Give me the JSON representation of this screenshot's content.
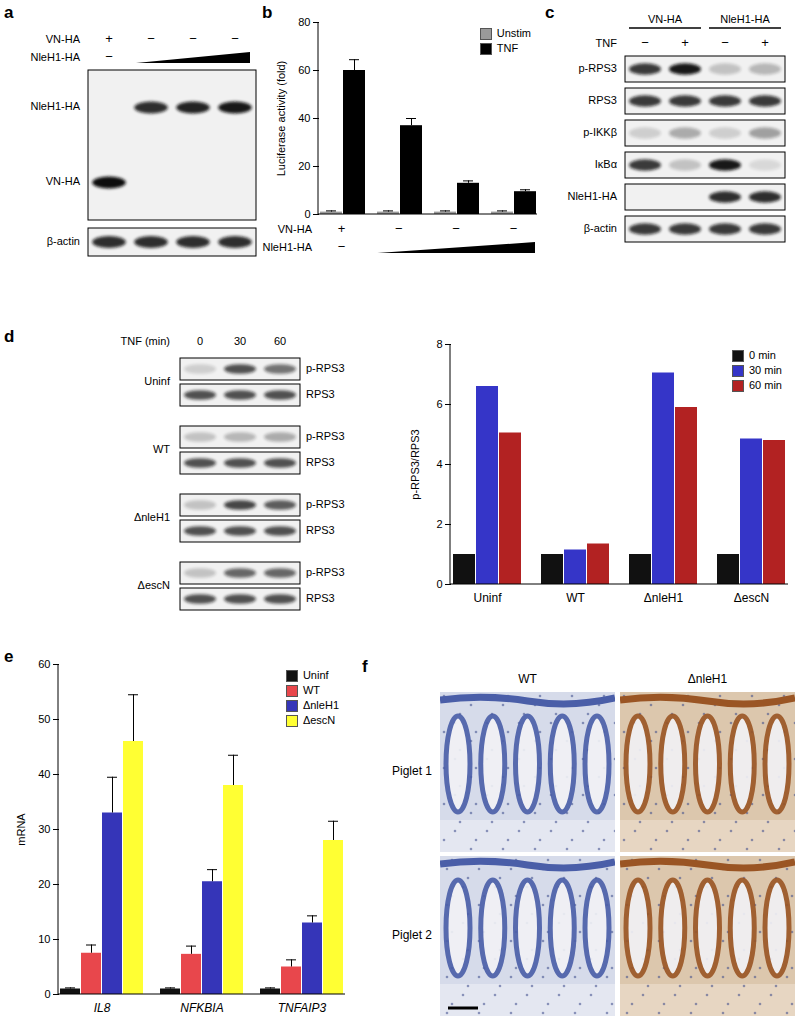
{
  "blots": [
    {
      "panel": "a",
      "header": [
        {
          "name": "VN-HA",
          "marks": [
            "+",
            "−",
            "−",
            "−"
          ]
        },
        {
          "name": "NleH1-HA",
          "marks": [
            "−",
            null,
            null,
            null
          ],
          "ramp": true
        }
      ],
      "boxes": [
        [
          {
            "label": "NleH1-HA",
            "bands": [
              0,
              0.85,
              0.9,
              0.95
            ]
          },
          {
            "label": "VN-HA",
            "bands": [
              1,
              0,
              0,
              0
            ]
          }
        ],
        [
          {
            "label": "β-actin",
            "bands": [
              0.85,
              0.85,
              0.85,
              0.85
            ]
          }
        ]
      ]
    },
    {
      "panel": "c",
      "group_header": [
        "VN-HA",
        "VN-HA",
        "NleH1-HA",
        "NleH1-HA"
      ],
      "header": [
        {
          "name": "TNF",
          "marks": [
            "−",
            "+",
            "−",
            "+"
          ]
        }
      ],
      "boxes": [
        [
          {
            "label": "p-RPS3",
            "bands": [
              0.8,
              0.95,
              0.2,
              0.25
            ]
          }
        ],
        [
          {
            "label": "RPS3",
            "bands": [
              0.8,
              0.8,
              0.8,
              0.8
            ]
          }
        ],
        [
          {
            "label": "p-IKKβ",
            "bands": [
              0.15,
              0.3,
              0.15,
              0.35
            ]
          }
        ],
        [
          {
            "label": "IκBα",
            "bands": [
              0.8,
              0.2,
              0.95,
              0.1
            ]
          }
        ],
        [
          {
            "label": "NleH1-HA",
            "bands": [
              0,
              0,
              0.85,
              0.85
            ]
          }
        ],
        [
          {
            "label": "β-actin",
            "bands": [
              0.8,
              0.8,
              0.8,
              0.8
            ]
          }
        ]
      ]
    },
    {
      "panel": "d",
      "header_label": "TNF (min)",
      "lanes": [
        0,
        30,
        60
      ],
      "groups": [
        {
          "name": "Uninf",
          "boxes": [
            [
              {
                "label": "p-RPS3",
                "bands": [
                  0.15,
                  0.7,
                  0.55
                ]
              }
            ],
            [
              {
                "label": "RPS3",
                "bands": [
                  0.7,
                  0.7,
                  0.7
                ]
              }
            ]
          ]
        },
        {
          "name": "WT",
          "boxes": [
            [
              {
                "label": "p-RPS3",
                "bands": [
                  0.2,
                  0.25,
                  0.3
                ]
              }
            ],
            [
              {
                "label": "RPS3",
                "bands": [
                  0.7,
                  0.7,
                  0.7
                ]
              }
            ]
          ]
        },
        {
          "name": "ΔnleH1",
          "boxes": [
            [
              {
                "label": "p-RPS3",
                "bands": [
                  0.2,
                  0.75,
                  0.65
                ]
              }
            ],
            [
              {
                "label": "RPS3",
                "bands": [
                  0.7,
                  0.7,
                  0.7
                ]
              }
            ]
          ]
        },
        {
          "name": "ΔescN",
          "boxes": [
            [
              {
                "label": "p-RPS3",
                "bands": [
                  0.2,
                  0.6,
                  0.6
                ]
              }
            ],
            [
              {
                "label": "RPS3",
                "bands": [
                  0.7,
                  0.7,
                  0.7
                ]
              }
            ]
          ]
        }
      ]
    }
  ],
  "images": {
    "panel": "f",
    "columns": [
      "WT",
      "ΔnleH1"
    ],
    "rows": [
      "Piglet 1",
      "Piglet 2"
    ]
  },
  "chart_data": [
    {
      "panel": "b",
      "type": "bar",
      "ylabel": "Luciferase activity (fold)",
      "categories": [
        null,
        null,
        null,
        null
      ],
      "condition_rows": [
        {
          "name": "VN-HA",
          "marks": [
            "+",
            "−",
            "−",
            "−"
          ]
        },
        {
          "name": "NleH1-HA",
          "marks": [
            "−",
            null,
            null,
            null
          ],
          "ramp": true
        }
      ],
      "series": [
        {
          "name": "Unstim",
          "color": "#9a9a9a",
          "values": [
            1,
            1,
            1,
            1
          ],
          "errors": [
            0.5,
            0.5,
            0.5,
            0.5
          ]
        },
        {
          "name": "TNF",
          "color": "#000000",
          "values": [
            60,
            37,
            13,
            9.5
          ],
          "errors": [
            4.5,
            3,
            1,
            0.8
          ]
        }
      ],
      "ylim": [
        0,
        80
      ],
      "yticks": [
        0,
        20,
        40,
        60,
        80
      ],
      "legend": "top-right"
    },
    {
      "type": "bar",
      "ylabel": "p-RPS3/RPS3",
      "categories": [
        "Uninf",
        "WT",
        "ΔnleH1",
        "ΔescN"
      ],
      "series": [
        {
          "name": "0 min",
          "color": "#111111",
          "values": [
            1,
            1,
            1,
            1
          ]
        },
        {
          "name": "30 min",
          "color": "#3535c8",
          "values": [
            6.6,
            1.15,
            7.05,
            4.85
          ]
        },
        {
          "name": "60 min",
          "color": "#b22222",
          "values": [
            5.05,
            1.35,
            5.9,
            4.8
          ]
        }
      ],
      "ylim": [
        0,
        8
      ],
      "yticks": [
        0,
        2,
        4,
        6,
        8
      ],
      "legend": "top-right"
    },
    {
      "panel": "e",
      "type": "bar",
      "ylabel": "mRNA",
      "categories": [
        "IL8",
        "NFKBIA",
        "TNFAIP3"
      ],
      "series": [
        {
          "name": "Uninf",
          "color": "#111111",
          "values": [
            1,
            1,
            1
          ],
          "errors": [
            0.2,
            0.2,
            0.2
          ]
        },
        {
          "name": "WT",
          "color": "#e8474c",
          "values": [
            7.5,
            7.3,
            5
          ],
          "errors": [
            1.5,
            1.5,
            1.3
          ]
        },
        {
          "name": "ΔnleH1",
          "color": "#3535b8",
          "values": [
            33,
            20.5,
            13
          ],
          "errors": [
            6.5,
            2.2,
            1.3
          ]
        },
        {
          "name": "ΔescN",
          "color": "#ffff33",
          "values": [
            46,
            38,
            28
          ],
          "errors": [
            8.5,
            5.5,
            3.5
          ]
        }
      ],
      "ylim": [
        0,
        60
      ],
      "yticks": [
        0,
        10,
        20,
        30,
        40,
        50,
        60
      ],
      "legend": "top-right"
    }
  ]
}
